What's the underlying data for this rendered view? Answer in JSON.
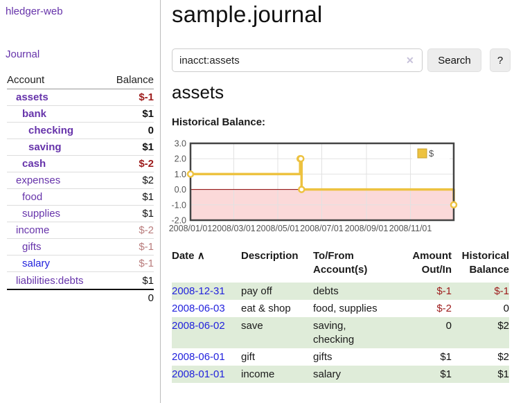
{
  "page": {
    "title": "sample.journal",
    "brand": "hledger-web",
    "nav_journal": "Journal",
    "account_heading": "assets",
    "chart_label": "Historical Balance:"
  },
  "search": {
    "value": "inacct:assets",
    "clear_icon": "✕",
    "button": "Search",
    "help_button": "?"
  },
  "sidebar": {
    "accounts": {
      "headers": {
        "account": "Account",
        "balance": "Balance"
      },
      "rows": [
        {
          "name": "assets",
          "balance": "$-1",
          "cls": "b i1"
        },
        {
          "name": "bank",
          "balance": "$1",
          "cls": "b i2"
        },
        {
          "name": "checking",
          "balance": "0",
          "cls": "b i3"
        },
        {
          "name": "saving",
          "balance": "$1",
          "cls": "b i3"
        },
        {
          "name": "cash",
          "balance": "$-2",
          "cls": "b i2"
        },
        {
          "name": "expenses",
          "balance": "$2",
          "cls": "i1"
        },
        {
          "name": "food",
          "balance": "$1",
          "cls": "i2"
        },
        {
          "name": "supplies",
          "balance": "$1",
          "cls": "i2"
        },
        {
          "name": "income",
          "balance": "$-2",
          "cls": "i1"
        },
        {
          "name": "gifts",
          "balance": "$-1",
          "cls": "i2"
        },
        {
          "name": "salary",
          "balance": "$-1",
          "cls": "i2 blue"
        },
        {
          "name": "liabilities:debts",
          "balance": "$1",
          "cls": "i1"
        }
      ],
      "total": "0"
    }
  },
  "register": {
    "sort_icon": "∧",
    "headers": [
      {
        "l1": "Date",
        "l2": ""
      },
      {
        "l1": "Description",
        "l2": ""
      },
      {
        "l1": "To/From",
        "l2": "Account(s)"
      },
      {
        "l1": "Amount",
        "l2": "Out/In"
      },
      {
        "l1": "Historical",
        "l2": "Balance"
      }
    ],
    "rows": [
      {
        "date": "2008-12-31",
        "description": "pay off",
        "accounts": "debts",
        "amount": "$-1",
        "balance": "$-1"
      },
      {
        "date": "2008-06-03",
        "description": "eat & shop",
        "accounts": "food, supplies",
        "amount": "$-2",
        "balance": "0"
      },
      {
        "date": "2008-06-02",
        "description": "save",
        "accounts": "saving,\nchecking",
        "amount": "0",
        "balance": "$2"
      },
      {
        "date": "2008-06-01",
        "description": "gift",
        "accounts": "gifts",
        "amount": "$1",
        "balance": "$2"
      },
      {
        "date": "2008-01-01",
        "description": "income",
        "accounts": "salary",
        "amount": "$1",
        "balance": "$1"
      }
    ]
  },
  "chart_data": {
    "type": "line",
    "step": true,
    "title": "Historical Balance",
    "series": [
      {
        "name": "$",
        "color": "#edc240",
        "points": [
          [
            "2008-01-01",
            1
          ],
          [
            "2008-06-01",
            2
          ],
          [
            "2008-06-02",
            2
          ],
          [
            "2008-06-03",
            0
          ],
          [
            "2008-12-31",
            -1
          ]
        ]
      }
    ],
    "x_range": [
      "2008-01-01",
      "2008-12-31"
    ],
    "x_ticks": [
      "2008/01/01",
      "2008/03/01",
      "2008/05/01",
      "2008/07/01",
      "2008/09/01",
      "2008/11/01"
    ],
    "y_ticks": [
      3.0,
      2.0,
      1.0,
      0.0,
      -1.0,
      -2.0
    ],
    "ylim": [
      -2,
      3
    ],
    "grid": true,
    "negative_region_color": "#fbd9d9",
    "zero_line_color": "#8b0000",
    "border_color": "#444444",
    "tick_color": "#545454",
    "legend": {
      "label": "$",
      "position": "top-right"
    }
  }
}
